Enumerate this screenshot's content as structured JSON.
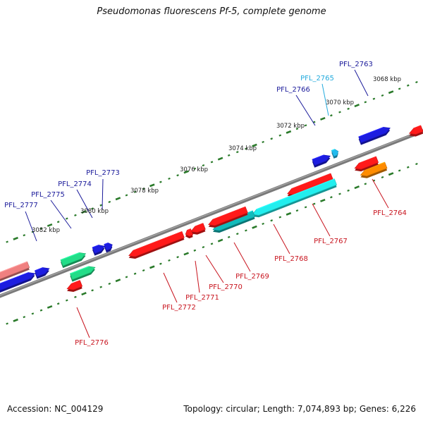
{
  "title": "Pseudomonas fluorescens Pf-5, complete genome",
  "footer": {
    "accession": "Accession: NC_004129",
    "summary": "Topology: circular; Length: 7,074,893 bp; Genes: 6,226"
  },
  "colors": {
    "backbone": "#7a7a7a",
    "ruler": "#2a7a2a",
    "label_forward": "#1a1a9a",
    "label_reverse": "#c8141e",
    "label_highlight": "#22aadd"
  },
  "ruler_labels": [
    "3068 kbp",
    "3070 kbp",
    "3072 kbp",
    "3074 kbp",
    "3076 kbp",
    "3078 kbp",
    "3080 kbp",
    "3082 kbp"
  ],
  "genes": [
    {
      "label": "PFL_2763",
      "strand": "forward",
      "color": "#1d1de0",
      "label_color": "#1a1a9a"
    },
    {
      "label": "PFL_2764",
      "strand": "reverse",
      "color": "#ff8c00",
      "label_color": "#c8141e"
    },
    {
      "label": "PFL_2765",
      "strand": "forward",
      "color": "#22bbee",
      "label_color": "#22aadd"
    },
    {
      "label": "PFL_2766",
      "strand": "forward",
      "color": "#1d1de0",
      "label_color": "#1a1a9a"
    },
    {
      "label": "PFL_2767",
      "strand": "reverse",
      "color": "#ff1a1a",
      "label_color": "#c8141e"
    },
    {
      "label": "PFL_2768",
      "strand": "reverse",
      "color": "#22eeee",
      "label_color": "#c8141e"
    },
    {
      "label": "PFL_2769",
      "strand": "reverse",
      "color": "#11bbbb",
      "label_color": "#c8141e"
    },
    {
      "label": "PFL_2770",
      "strand": "reverse",
      "color": "#ff1a1a",
      "label_color": "#c8141e"
    },
    {
      "label": "PFL_2771",
      "strand": "reverse",
      "color": "#ff1a1a",
      "label_color": "#c8141e"
    },
    {
      "label": "PFL_2772",
      "strand": "reverse",
      "color": "#ff1a1a",
      "label_color": "#c8141e"
    },
    {
      "label": "PFL_2773",
      "strand": "forward",
      "color": "#1d1de0",
      "label_color": "#1a1a9a"
    },
    {
      "label": "PFL_2774",
      "strand": "forward",
      "color": "#1d1de0",
      "label_color": "#1a1a9a"
    },
    {
      "label": "PFL_2775",
      "strand": "forward",
      "color": "#22dd88",
      "label_color": "#1a1a9a"
    },
    {
      "label": "PFL_2776",
      "strand": "reverse",
      "color": "#ff1a1a",
      "label_color": "#c8141e"
    },
    {
      "label": "PFL_2777",
      "strand": "forward",
      "color": "#1d1de0",
      "label_color": "#1a1a9a"
    }
  ],
  "unlabeled_features": [
    {
      "name": "reverse-gene-upper-right",
      "strand": "reverse",
      "color": "#ff1a1a"
    },
    {
      "name": "reverse-gene-pink",
      "strand": "reverse",
      "color": "#f08080"
    },
    {
      "name": "reverse-gene-bottom",
      "strand": "reverse",
      "color": "#ff1a1a"
    }
  ]
}
